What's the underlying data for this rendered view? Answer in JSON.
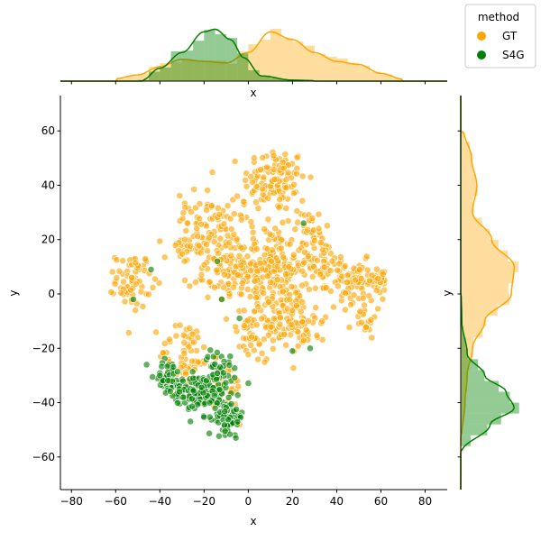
{
  "chart_data": {
    "type": "scatter",
    "title": "",
    "xlabel": "x",
    "ylabel": "y",
    "top_xlabel": "x",
    "right_ylabel": "y",
    "xlim": [
      -85,
      90
    ],
    "ylim": [
      -72,
      73
    ],
    "xticks": [
      -80,
      -60,
      -40,
      -20,
      0,
      20,
      40,
      60,
      80
    ],
    "yticks": [
      -60,
      -40,
      -20,
      0,
      20,
      40,
      60
    ],
    "grid": false,
    "legend": {
      "title": "method",
      "placement": "top-right",
      "entries": [
        {
          "name": "GT",
          "color": "#FFA500"
        },
        {
          "name": "S4G",
          "color": "#008000"
        }
      ]
    },
    "series": [
      {
        "name": "GT",
        "color": "#FFA500",
        "clusters": [
          {
            "cx": 12,
            "cy": 42,
            "sx": 7,
            "sy": 6,
            "n": 110
          },
          {
            "cx": 10,
            "cy": 10,
            "sx": 9,
            "sy": 7,
            "n": 200
          },
          {
            "cx": 14,
            "cy": -10,
            "sx": 7,
            "sy": 6,
            "n": 110
          },
          {
            "cx": -10,
            "cy": 10,
            "sx": 8,
            "sy": 7,
            "n": 90
          },
          {
            "cx": -22,
            "cy": 28,
            "sx": 5,
            "sy": 5,
            "n": 45
          },
          {
            "cx": -6,
            "cy": 28,
            "sx": 5,
            "sy": 4,
            "n": 25
          },
          {
            "cx": -52,
            "cy": 5,
            "sx": 4,
            "sy": 5,
            "n": 70
          },
          {
            "cx": -28,
            "cy": 16,
            "sx": 5,
            "sy": 3,
            "n": 30
          },
          {
            "cx": 32,
            "cy": 12,
            "sx": 5,
            "sy": 6,
            "n": 55
          },
          {
            "cx": 48,
            "cy": 4,
            "sx": 6,
            "sy": 4,
            "n": 70
          },
          {
            "cx": 58,
            "cy": 6,
            "sx": 3,
            "sy": 3,
            "n": 25
          },
          {
            "cx": 52,
            "cy": -8,
            "sx": 3,
            "sy": 4,
            "n": 25
          },
          {
            "cx": 26,
            "cy": -10,
            "sx": 4,
            "sy": 5,
            "n": 30
          },
          {
            "cx": -28,
            "cy": -22,
            "sx": 6,
            "sy": 6,
            "n": 60
          },
          {
            "cx": -14,
            "cy": -35,
            "sx": 7,
            "sy": 7,
            "n": 40
          },
          {
            "cx": 28,
            "cy": 26,
            "sx": 3,
            "sy": 4,
            "n": 20
          },
          {
            "cx": 0,
            "cy": -16,
            "sx": 4,
            "sy": 5,
            "n": 25
          }
        ],
        "x_marginal": [
          [
            -60,
            0.05
          ],
          [
            -50,
            0.12
          ],
          [
            -40,
            0.28
          ],
          [
            -30,
            0.42
          ],
          [
            -20,
            0.38
          ],
          [
            -10,
            0.35
          ],
          [
            0,
            0.55
          ],
          [
            10,
            0.95
          ],
          [
            20,
            0.8
          ],
          [
            30,
            0.55
          ],
          [
            40,
            0.38
          ],
          [
            50,
            0.32
          ],
          [
            60,
            0.15
          ],
          [
            70,
            0.04
          ]
        ],
        "y_marginal": [
          [
            -52,
            0.02
          ],
          [
            -40,
            0.08
          ],
          [
            -30,
            0.12
          ],
          [
            -20,
            0.22
          ],
          [
            -10,
            0.45
          ],
          [
            0,
            0.95
          ],
          [
            10,
            1.0
          ],
          [
            20,
            0.58
          ],
          [
            30,
            0.22
          ],
          [
            40,
            0.3
          ],
          [
            50,
            0.2
          ],
          [
            60,
            0.06
          ]
        ]
      },
      {
        "name": "S4G",
        "color": "#008000",
        "clusters": [
          {
            "cx": -36,
            "cy": -30,
            "sx": 3,
            "sy": 3,
            "n": 40
          },
          {
            "cx": -24,
            "cy": -36,
            "sx": 5,
            "sy": 3,
            "n": 80
          },
          {
            "cx": -16,
            "cy": -35,
            "sx": 5,
            "sy": 5,
            "n": 80
          },
          {
            "cx": -8,
            "cy": -45,
            "sx": 3,
            "sy": 3,
            "n": 60
          },
          {
            "cx": -14,
            "cy": -27,
            "sx": 3,
            "sy": 3,
            "n": 20
          }
        ],
        "outliers": [
          [
            -46,
            -26
          ],
          [
            -44,
            9
          ],
          [
            -40,
            -30
          ],
          [
            -14,
            12
          ],
          [
            -12,
            -2
          ],
          [
            -4,
            -9
          ],
          [
            20,
            -21
          ],
          [
            25,
            26
          ],
          [
            28,
            -20
          ],
          [
            -52,
            -2
          ]
        ],
        "x_marginal": [
          [
            -48,
            0.02
          ],
          [
            -40,
            0.25
          ],
          [
            -30,
            0.55
          ],
          [
            -20,
            0.95
          ],
          [
            -15,
            1.0
          ],
          [
            -8,
            0.8
          ],
          [
            -2,
            0.45
          ],
          [
            6,
            0.1
          ],
          [
            20,
            0.02
          ],
          [
            30,
            0.01
          ]
        ],
        "y_marginal": [
          [
            -58,
            0.02
          ],
          [
            -48,
            0.55
          ],
          [
            -42,
            1.0
          ],
          [
            -36,
            0.85
          ],
          [
            -30,
            0.45
          ],
          [
            -22,
            0.12
          ],
          [
            -10,
            0.02
          ],
          [
            0,
            0.01
          ]
        ]
      }
    ]
  }
}
